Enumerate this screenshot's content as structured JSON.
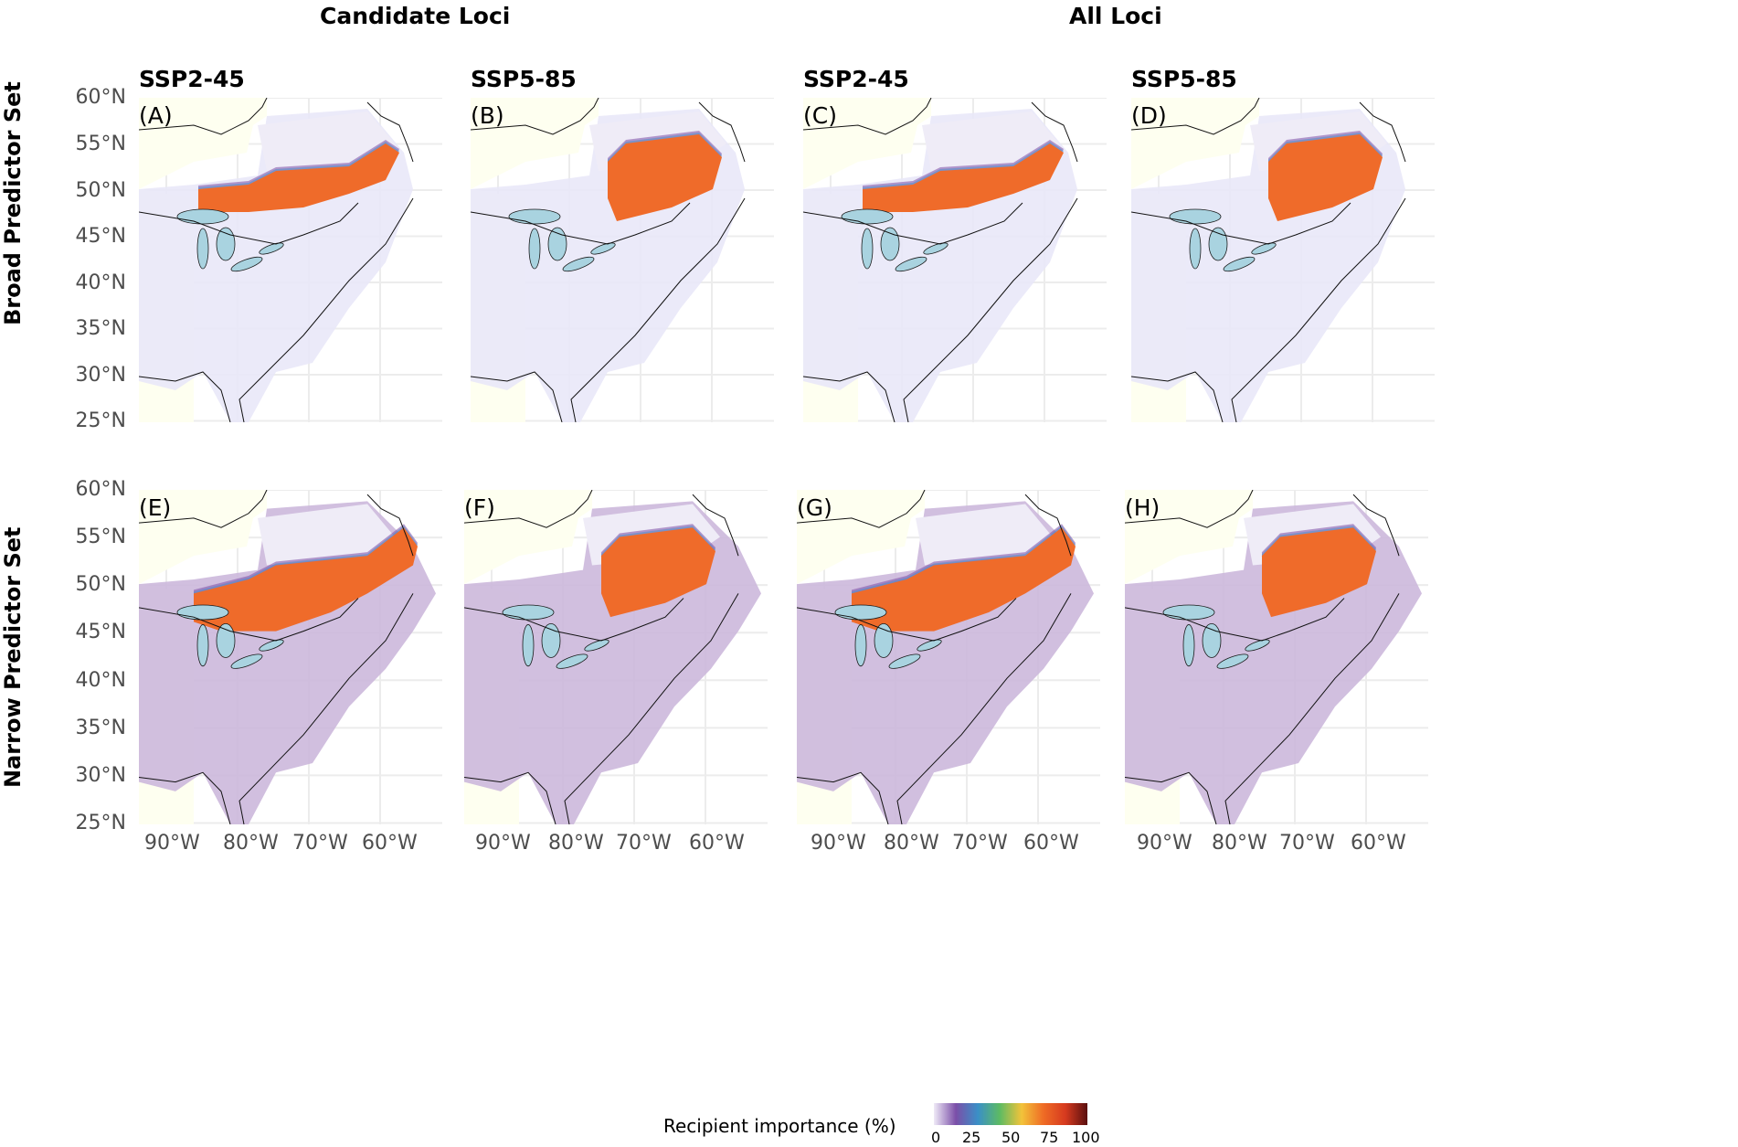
{
  "column_groups": [
    "Candidate Loci",
    "All Loci"
  ],
  "row_titles": [
    "Broad Predictor Set",
    "Narrow Predictor Set"
  ],
  "scenarios": [
    "SSP2-45",
    "SSP5-85",
    "SSP2-45",
    "SSP5-85"
  ],
  "lat_labels": [
    "60°N",
    "55°N",
    "50°N",
    "45°N",
    "40°N",
    "35°N",
    "30°N",
    "25°N"
  ],
  "lon_labels": [
    "90°W",
    "80°W",
    "70°W",
    "60°W"
  ],
  "panels": [
    {
      "letter": "(A)",
      "group": "Candidate Loci",
      "scenario": "SSP2-45",
      "predictor": "Broad"
    },
    {
      "letter": "(B)",
      "group": "Candidate Loci",
      "scenario": "SSP5-85",
      "predictor": "Broad"
    },
    {
      "letter": "(C)",
      "group": "All Loci",
      "scenario": "SSP2-45",
      "predictor": "Broad"
    },
    {
      "letter": "(D)",
      "group": "All Loci",
      "scenario": "SSP5-85",
      "predictor": "Broad"
    },
    {
      "letter": "(E)",
      "group": "Candidate Loci",
      "scenario": "SSP2-45",
      "predictor": "Narrow"
    },
    {
      "letter": "(F)",
      "group": "Candidate Loci",
      "scenario": "SSP5-85",
      "predictor": "Narrow"
    },
    {
      "letter": "(G)",
      "group": "All Loci",
      "scenario": "SSP2-45",
      "predictor": "Narrow"
    },
    {
      "letter": "(H)",
      "group": "All Loci",
      "scenario": "SSP5-85",
      "predictor": "Narrow"
    }
  ],
  "legend": {
    "title": "Recipient importance (%)",
    "ticks": [
      "0",
      "25",
      "50",
      "75",
      "100"
    ],
    "colors": [
      "#efeaf7",
      "#7b4fa8",
      "#3a8fc7",
      "#5dbb63",
      "#f2c33a",
      "#ef6b25",
      "#d63a1f",
      "#5a0f0f"
    ]
  },
  "colors": {
    "land_background": "#fefff0",
    "range_low": "#e9e8f8",
    "range_purple": "#ccb8dc",
    "high": "#ef6b2a",
    "water": "#a9d3e0",
    "grid": "#ececec"
  }
}
